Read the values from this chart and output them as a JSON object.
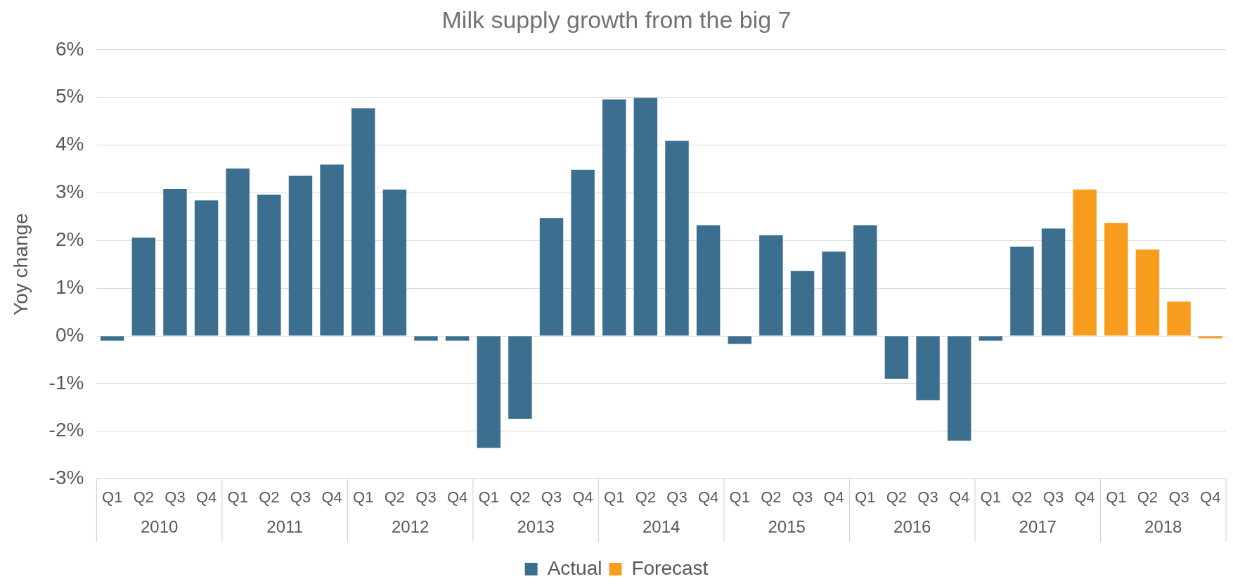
{
  "chart_data": {
    "type": "bar",
    "title": "Milk supply growth from the big 7",
    "ylabel": "Yoy change",
    "categories": [
      "Q1",
      "Q2",
      "Q3",
      "Q4",
      "Q1",
      "Q2",
      "Q3",
      "Q4",
      "Q1",
      "Q2",
      "Q3",
      "Q4",
      "Q1",
      "Q2",
      "Q3",
      "Q4",
      "Q1",
      "Q2",
      "Q3",
      "Q4",
      "Q1",
      "Q2",
      "Q3",
      "Q4",
      "Q1",
      "Q2",
      "Q3",
      "Q4",
      "Q1",
      "Q2",
      "Q3",
      "Q4",
      "Q1",
      "Q2",
      "Q3",
      "Q4"
    ],
    "annotations": [
      "2010",
      "2011",
      "2012",
      "2013",
      "2014",
      "2015",
      "2016",
      "2017",
      "2018"
    ],
    "series": [
      {
        "name": "Actual",
        "color": "#3b6e8f",
        "values": [
          -0.1,
          2.06,
          3.08,
          2.84,
          3.51,
          2.96,
          3.36,
          3.59,
          4.77,
          3.07,
          -0.1,
          -0.1,
          -2.35,
          -1.74,
          2.47,
          3.48,
          4.96,
          4.99,
          4.09,
          2.32,
          -0.17,
          2.11,
          1.36,
          1.77,
          2.32,
          -0.9,
          -1.35,
          -2.2,
          -0.1,
          1.87,
          2.25,
          null,
          null,
          null,
          null,
          null
        ]
      },
      {
        "name": "Forecast",
        "color": "#f89c1e",
        "values": [
          null,
          null,
          null,
          null,
          null,
          null,
          null,
          null,
          null,
          null,
          null,
          null,
          null,
          null,
          null,
          null,
          null,
          null,
          null,
          null,
          null,
          null,
          null,
          null,
          null,
          null,
          null,
          null,
          null,
          null,
          null,
          3.07,
          2.37,
          1.81,
          0.72,
          -0.05
        ]
      }
    ],
    "ylim": [
      -3,
      6
    ],
    "yticks": [
      {
        "value": -3,
        "label": "-3%"
      },
      {
        "value": -2,
        "label": "-2%"
      },
      {
        "value": -1,
        "label": "-1%"
      },
      {
        "value": 0,
        "label": "0%"
      },
      {
        "value": 1,
        "label": "1%"
      },
      {
        "value": 2,
        "label": "2%"
      },
      {
        "value": 3,
        "label": "3%"
      },
      {
        "value": 4,
        "label": "4%"
      },
      {
        "value": 5,
        "label": "5%"
      },
      {
        "value": 6,
        "label": "6%"
      }
    ],
    "grid": "y",
    "legend": "bottom"
  }
}
